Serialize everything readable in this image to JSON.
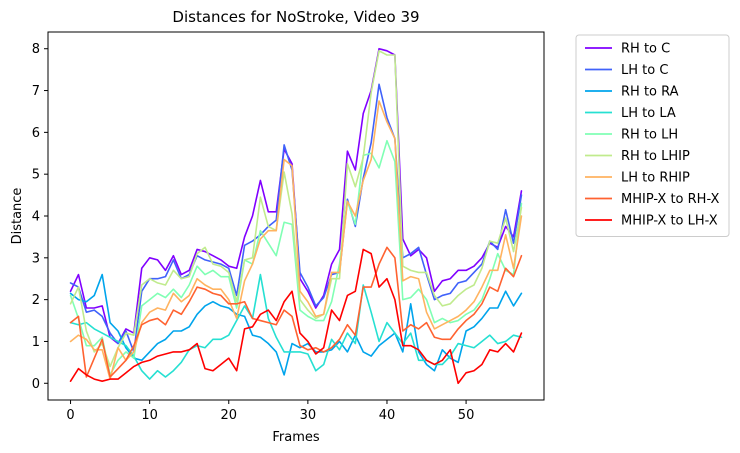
{
  "chart_data": {
    "type": "line",
    "title": "Distances for NoStroke, Video 39",
    "xlabel": "Frames",
    "ylabel": "Distance",
    "xlim": [
      -2.85,
      59.85
    ],
    "ylim": [
      -0.4,
      8.4
    ],
    "xticks": [
      0,
      10,
      20,
      30,
      40,
      50
    ],
    "yticks": [
      0,
      1,
      2,
      3,
      4,
      5,
      6,
      7,
      8
    ],
    "legend_position": "outside-upper-right",
    "grid": false,
    "series": [
      {
        "name": "RH to C",
        "color": "#8000ff",
        "values": [
          2.2,
          2.6,
          1.8,
          1.8,
          1.85,
          1.1,
          0.95,
          1.3,
          1.2,
          2.75,
          3.0,
          2.95,
          2.7,
          3.05,
          2.6,
          2.7,
          3.2,
          3.15,
          3.05,
          2.95,
          2.8,
          2.75,
          3.5,
          4.0,
          4.85,
          4.1,
          4.1,
          5.6,
          5.25,
          2.5,
          2.2,
          1.8,
          2.1,
          2.85,
          3.2,
          5.55,
          5.1,
          6.45,
          7.0,
          8.0,
          7.95,
          7.85,
          3.45,
          3.05,
          3.2,
          3.0,
          2.2,
          2.45,
          2.5,
          2.7,
          2.7,
          2.8,
          3.0,
          3.35,
          3.25,
          3.75,
          3.5,
          4.6
        ]
      },
      {
        "name": "LH to C",
        "color": "#4062fa",
        "values": [
          2.4,
          2.3,
          1.7,
          1.75,
          1.6,
          1.2,
          0.95,
          1.25,
          0.75,
          2.2,
          2.5,
          2.5,
          2.55,
          2.95,
          2.5,
          2.6,
          3.05,
          2.95,
          2.9,
          2.85,
          2.75,
          2.1,
          3.3,
          3.4,
          3.55,
          3.75,
          3.9,
          5.7,
          5.1,
          2.65,
          2.3,
          1.85,
          2.05,
          2.6,
          2.65,
          4.4,
          3.75,
          4.9,
          5.75,
          7.15,
          6.35,
          5.85,
          3.0,
          3.1,
          3.25,
          2.6,
          2.0,
          2.1,
          2.15,
          2.4,
          2.45,
          2.65,
          2.85,
          3.4,
          3.2,
          4.15,
          3.35,
          4.5
        ]
      },
      {
        "name": "RH to RA",
        "color": "#00a4ec",
        "values": [
          2.15,
          2.0,
          1.95,
          2.1,
          2.6,
          1.45,
          1.25,
          0.85,
          0.6,
          0.55,
          0.75,
          0.95,
          1.05,
          1.25,
          1.25,
          1.35,
          1.65,
          1.85,
          1.95,
          1.85,
          1.8,
          1.65,
          1.6,
          1.15,
          1.1,
          0.95,
          0.75,
          0.2,
          0.95,
          0.85,
          0.95,
          0.75,
          0.75,
          0.8,
          1.0,
          0.75,
          1.15,
          0.75,
          0.65,
          0.9,
          1.05,
          1.2,
          0.75,
          1.9,
          0.75,
          0.45,
          0.3,
          0.8,
          0.6,
          0.5,
          1.25,
          1.35,
          1.55,
          1.8,
          1.8,
          2.2,
          1.85,
          2.15
        ]
      },
      {
        "name": "LH to LA",
        "color": "#26e0d2",
        "values": [
          1.45,
          1.4,
          1.45,
          1.3,
          1.2,
          1.1,
          1.0,
          0.9,
          0.65,
          0.3,
          0.1,
          0.3,
          0.15,
          0.3,
          0.5,
          0.8,
          0.9,
          0.85,
          1.05,
          1.05,
          1.15,
          1.5,
          1.85,
          1.55,
          2.6,
          1.55,
          1.1,
          0.75,
          0.75,
          0.75,
          0.7,
          0.3,
          0.45,
          1.05,
          0.8,
          1.2,
          0.95,
          2.35,
          1.7,
          1.0,
          1.45,
          1.2,
          0.95,
          1.2,
          0.55,
          0.55,
          0.45,
          0.45,
          0.65,
          0.95,
          0.9,
          0.85,
          1.0,
          1.15,
          0.95,
          1.0,
          1.15,
          1.1
        ]
      },
      {
        "name": "RH to LH",
        "color": "#80ffb4",
        "values": [
          2.1,
          1.55,
          0.9,
          0.9,
          1.1,
          0.2,
          0.55,
          0.75,
          0.6,
          1.85,
          2.0,
          2.15,
          2.05,
          2.25,
          2.05,
          2.35,
          2.8,
          2.6,
          2.7,
          2.55,
          2.55,
          1.8,
          2.95,
          2.85,
          3.65,
          3.35,
          3.05,
          3.85,
          3.8,
          1.75,
          1.6,
          1.5,
          1.5,
          1.95,
          2.85,
          4.35,
          3.8,
          5.45,
          5.5,
          5.15,
          5.8,
          5.3,
          2.0,
          2.05,
          2.25,
          2.0,
          1.45,
          1.55,
          1.45,
          1.5,
          1.65,
          1.75,
          2.0,
          2.5,
          3.1,
          2.7,
          2.6,
          4.3
        ]
      },
      {
        "name": "RH to LHIP",
        "color": "#c0eb8d",
        "values": [
          1.9,
          2.3,
          1.25,
          0.75,
          0.95,
          0.4,
          0.85,
          1.2,
          1.15,
          2.35,
          2.5,
          2.4,
          2.35,
          2.7,
          2.5,
          2.55,
          3.1,
          3.25,
          2.85,
          2.8,
          2.65,
          1.95,
          2.95,
          3.0,
          4.45,
          3.75,
          3.65,
          5.05,
          4.05,
          2.0,
          1.75,
          1.55,
          1.65,
          2.5,
          2.5,
          5.25,
          4.7,
          5.4,
          6.95,
          7.95,
          7.85,
          7.85,
          2.8,
          2.7,
          2.65,
          2.65,
          2.1,
          1.85,
          1.9,
          2.1,
          2.25,
          2.35,
          2.75,
          3.4,
          3.35,
          3.95,
          3.15,
          4.2
        ]
      },
      {
        "name": "LH to RHIP",
        "color": "#ffb360",
        "values": [
          1.0,
          1.15,
          1.05,
          0.8,
          0.8,
          0.1,
          0.85,
          0.55,
          0.75,
          1.45,
          1.7,
          1.8,
          1.75,
          2.15,
          1.95,
          2.1,
          2.5,
          2.35,
          2.25,
          2.25,
          2.0,
          1.55,
          2.45,
          2.85,
          3.45,
          3.65,
          3.65,
          5.35,
          5.2,
          2.2,
          1.95,
          1.6,
          1.65,
          2.65,
          2.65,
          4.35,
          4.0,
          4.85,
          5.35,
          6.75,
          6.25,
          5.85,
          2.45,
          2.55,
          2.5,
          1.7,
          1.3,
          1.4,
          1.5,
          1.6,
          1.75,
          1.95,
          2.3,
          2.7,
          2.7,
          3.55,
          2.75,
          4.0
        ]
      },
      {
        "name": "MHIP-X to RH-X",
        "color": "#ff6230",
        "values": [
          1.45,
          1.6,
          0.15,
          0.6,
          1.05,
          0.15,
          0.35,
          0.55,
          0.9,
          1.4,
          1.5,
          1.55,
          1.4,
          1.75,
          1.65,
          1.95,
          2.3,
          2.25,
          2.15,
          2.1,
          1.9,
          1.9,
          1.95,
          1.55,
          1.5,
          1.45,
          1.4,
          1.75,
          1.6,
          0.9,
          0.8,
          0.85,
          0.75,
          0.85,
          1.05,
          1.4,
          1.15,
          2.3,
          2.3,
          2.85,
          3.25,
          3.0,
          1.25,
          1.4,
          1.3,
          1.45,
          1.1,
          1.05,
          1.05,
          1.3,
          1.5,
          1.65,
          1.9,
          2.3,
          2.2,
          2.75,
          2.55,
          3.05
        ]
      },
      {
        "name": "MHIP-X to LH-X",
        "color": "#ff0000",
        "values": [
          0.05,
          0.35,
          0.2,
          0.1,
          0.05,
          0.1,
          0.1,
          0.25,
          0.4,
          0.5,
          0.55,
          0.65,
          0.7,
          0.75,
          0.75,
          0.8,
          0.95,
          0.35,
          0.3,
          0.45,
          0.6,
          0.3,
          1.3,
          1.35,
          1.65,
          1.75,
          1.5,
          1.95,
          2.2,
          1.2,
          1.0,
          0.7,
          0.85,
          1.75,
          1.5,
          2.1,
          2.2,
          3.2,
          3.1,
          2.3,
          2.5,
          2.0,
          0.9,
          0.9,
          0.8,
          0.55,
          0.45,
          0.55,
          0.8,
          0.0,
          0.25,
          0.3,
          0.45,
          0.8,
          0.75,
          0.95,
          0.75,
          1.2
        ]
      }
    ]
  }
}
